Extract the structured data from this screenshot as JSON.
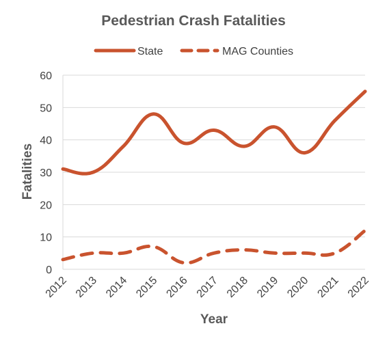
{
  "chart_data": {
    "type": "line",
    "title": "Pedestrian Crash Fatalities",
    "xlabel": "Year",
    "ylabel": "Fatalities",
    "categories": [
      "2012",
      "2013",
      "2014",
      "2015",
      "2016",
      "2017",
      "2018",
      "2019",
      "2020",
      "2021",
      "2022"
    ],
    "ylim": [
      0,
      60
    ],
    "yticks": [
      0,
      10,
      20,
      30,
      40,
      50,
      60
    ],
    "grid": true,
    "legend": "top",
    "series": [
      {
        "name": "State",
        "style": "solid",
        "color": "#c9532e",
        "values": [
          31,
          30,
          38,
          48,
          39,
          43,
          38,
          44,
          36,
          46,
          55
        ]
      },
      {
        "name": "MAG Counties",
        "style": "dashed",
        "color": "#c9532e",
        "values": [
          3,
          5,
          5,
          7,
          2,
          5,
          6,
          5,
          5,
          5,
          12
        ]
      }
    ]
  }
}
